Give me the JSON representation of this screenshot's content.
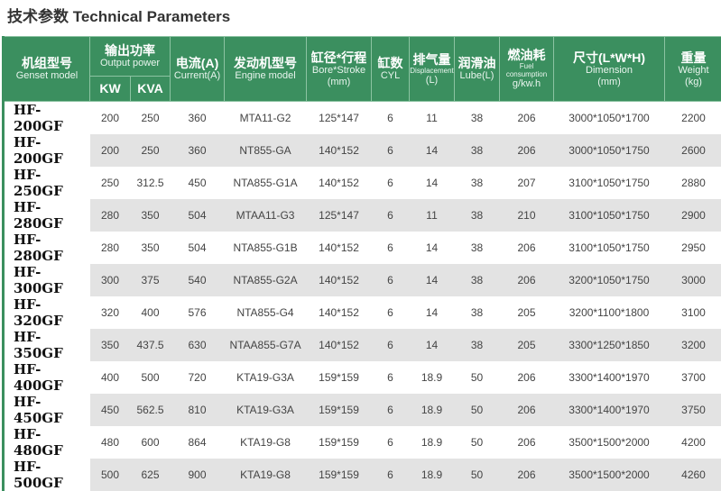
{
  "title": "技术参数 Technical Parameters",
  "headers": {
    "model": {
      "cn": "机组型号",
      "en": "Genset model"
    },
    "power": {
      "cn": "输出功率",
      "en": "Output power",
      "kw": "KW",
      "kva": "KVA"
    },
    "current": {
      "cn": "电流(A)",
      "en": "Current(A)"
    },
    "engine": {
      "cn": "发动机型号",
      "en": "Engine model"
    },
    "bore": {
      "cn": "缸径*行程",
      "en": "Bore*Stroke",
      "unit": "(mm)"
    },
    "cyl": {
      "cn": "缸数",
      "en": "CYL"
    },
    "disp": {
      "cn": "排气量",
      "en": "Displacement",
      "unit": "(L)"
    },
    "lube": {
      "cn": "润滑油",
      "en": "Lube(L)"
    },
    "fuel": {
      "cn": "燃油耗",
      "en": "Fuel consumption",
      "unit": "g/kw.h"
    },
    "dim": {
      "cn": "尺寸(L*W*H)",
      "en": "Dimension",
      "unit": "(mm)"
    },
    "weight": {
      "cn": "重量",
      "en": "Weight",
      "unit": "(kg)"
    }
  },
  "rows": [
    [
      "HF-200GF",
      "200",
      "250",
      "360",
      "MTA11-G2",
      "125*147",
      "6",
      "11",
      "38",
      "206",
      "3000*1050*1700",
      "2200"
    ],
    [
      "HF-200GF",
      "200",
      "250",
      "360",
      "NT855-GA",
      "140*152",
      "6",
      "14",
      "38",
      "206",
      "3000*1050*1750",
      "2600"
    ],
    [
      "HF-250GF",
      "250",
      "312.5",
      "450",
      "NTA855-G1A",
      "140*152",
      "6",
      "14",
      "38",
      "207",
      "3100*1050*1750",
      "2880"
    ],
    [
      "HF-280GF",
      "280",
      "350",
      "504",
      "MTAA11-G3",
      "125*147",
      "6",
      "11",
      "38",
      "210",
      "3100*1050*1750",
      "2900"
    ],
    [
      "HF-280GF",
      "280",
      "350",
      "504",
      "NTA855-G1B",
      "140*152",
      "6",
      "14",
      "38",
      "206",
      "3100*1050*1750",
      "2950"
    ],
    [
      "HF-300GF",
      "300",
      "375",
      "540",
      "NTA855-G2A",
      "140*152",
      "6",
      "14",
      "38",
      "206",
      "3200*1050*1750",
      "3000"
    ],
    [
      "HF-320GF",
      "320",
      "400",
      "576",
      "NTA855-G4",
      "140*152",
      "6",
      "14",
      "38",
      "205",
      "3200*1100*1800",
      "3100"
    ],
    [
      "HF-350GF",
      "350",
      "437.5",
      "630",
      "NTAA855-G7A",
      "140*152",
      "6",
      "14",
      "38",
      "205",
      "3300*1250*1850",
      "3200"
    ],
    [
      "HF-400GF",
      "400",
      "500",
      "720",
      "KTA19-G3A",
      "159*159",
      "6",
      "18.9",
      "50",
      "206",
      "3300*1400*1970",
      "3700"
    ],
    [
      "HF-450GF",
      "450",
      "562.5",
      "810",
      "KTA19-G3A",
      "159*159",
      "6",
      "18.9",
      "50",
      "206",
      "3300*1400*1970",
      "3750"
    ],
    [
      "HF-480GF",
      "480",
      "600",
      "864",
      "KTA19-G8",
      "159*159",
      "6",
      "18.9",
      "50",
      "206",
      "3500*1500*2000",
      "4200"
    ],
    [
      "HF-500GF",
      "500",
      "625",
      "900",
      "KTA19-G8",
      "159*159",
      "6",
      "18.9",
      "50",
      "206",
      "3500*1500*2000",
      "4260"
    ]
  ],
  "colors": {
    "header": "#3b8f5f",
    "alt_row": "#e3e3e3"
  }
}
